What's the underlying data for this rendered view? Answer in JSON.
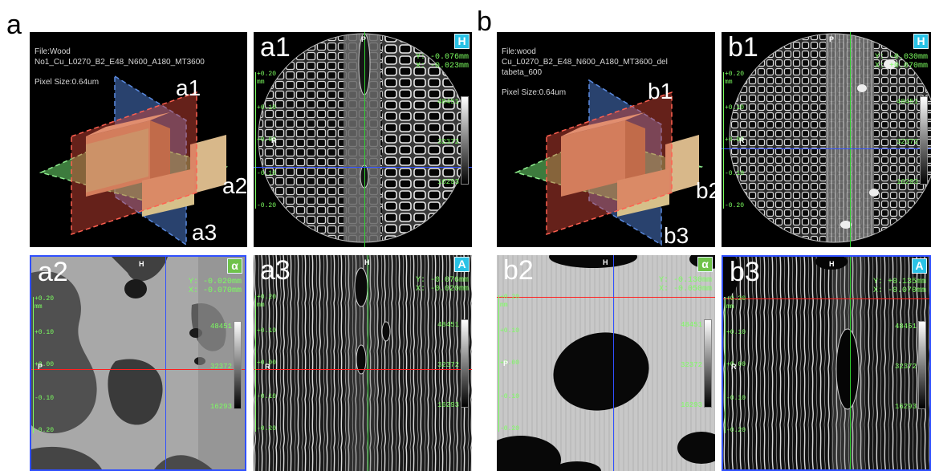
{
  "figure": {
    "group_a_label": "a",
    "group_b_label": "b"
  },
  "group_a": {
    "scene": {
      "title_file": "File:Wood",
      "file_name": "No1_Cu_L0270_B2_E48_N600_A180_MT3600",
      "pixel_size": "Pixel Size:0.64um",
      "plane_labels": [
        "a1",
        "a2",
        "a3"
      ]
    },
    "a1": {
      "title": "a1",
      "badge": "H",
      "coord_y": "Y: -0.076mm",
      "coord_x": "X: -0.023mm",
      "cbar_values": [
        "48451",
        "32372",
        "16293"
      ],
      "scale_ticks": [
        "+0.20",
        "mm",
        "+0.10",
        "+0.00",
        "-0.10",
        "-0.20"
      ],
      "axis_top": "P",
      "axis_side": "R"
    },
    "a2": {
      "title": "a2",
      "badge": "α",
      "coord_y": "Y: -0.020mm",
      "coord_x": "X: -0.070mm",
      "cbar_values": [
        "48451",
        "32372",
        "16293"
      ],
      "scale_ticks": [
        "+0.20",
        "mm",
        "+0.10",
        "+0.00",
        "-0.10",
        "-0.20"
      ],
      "axis_top": "H",
      "axis_side": "P"
    },
    "a3": {
      "title": "a3",
      "badge": "A",
      "coord_y": "Y: -0.076mm",
      "coord_x": "X: -0.020mm",
      "cbar_values": [
        "48451",
        "32372",
        "16293"
      ],
      "scale_ticks": [
        "+0.20",
        "mm",
        "+0.10",
        "+0.00",
        "-0.10",
        "-0.20"
      ],
      "axis_top": "H",
      "axis_side": "R"
    }
  },
  "group_b": {
    "scene": {
      "title_file": "File:wood",
      "file_name": "Cu_L0270_B2_E48_N600_A180_MT3600_del",
      "file_name_2": "tabeta_600",
      "pixel_size": "Pixel Size:0.64um",
      "plane_labels": [
        "b1",
        "b2",
        "b3"
      ]
    },
    "b1": {
      "title": "b1",
      "badge": "H",
      "coord_y": "Y: -0.030mm",
      "coord_x": "X: +0.070mm",
      "cbar_values": [
        "48451",
        "32372",
        "16293"
      ],
      "scale_ticks": [
        "+0.20",
        "mm",
        "+0.10",
        "+0.00",
        "-0.10",
        "-0.20"
      ],
      "axis_top": "P",
      "axis_side": "R"
    },
    "b2": {
      "title": "b2",
      "badge": "α",
      "coord_y": "Y: -0.130mm",
      "coord_x": "X: -0.050mm",
      "cbar_values": [
        "48451",
        "32372",
        "16293"
      ],
      "scale_ticks": [
        "+0.20",
        "mm",
        "+0.10",
        "+0.00",
        "-0.10",
        "-0.20"
      ],
      "axis_top": "H",
      "axis_side": "P"
    },
    "b3": {
      "title": "b3",
      "badge": "A",
      "coord_y": "Y: +0.135mm",
      "coord_x": "X: -0.070mm",
      "cbar_values": [
        "48451",
        "32372",
        "16293"
      ],
      "scale_ticks": [
        "+0.20",
        "mm",
        "+0.10",
        "+0.00",
        "-0.10",
        "-0.20"
      ],
      "axis_top": "H",
      "axis_side": "R"
    }
  },
  "colors": {
    "overlay_green": "#7cff60",
    "crosshair_red": "#ff2020",
    "crosshair_blue": "#3050ff",
    "crosshair_green": "#30d030",
    "badge_cyan": "#29c2e6",
    "badge_green": "#6fc24a"
  }
}
